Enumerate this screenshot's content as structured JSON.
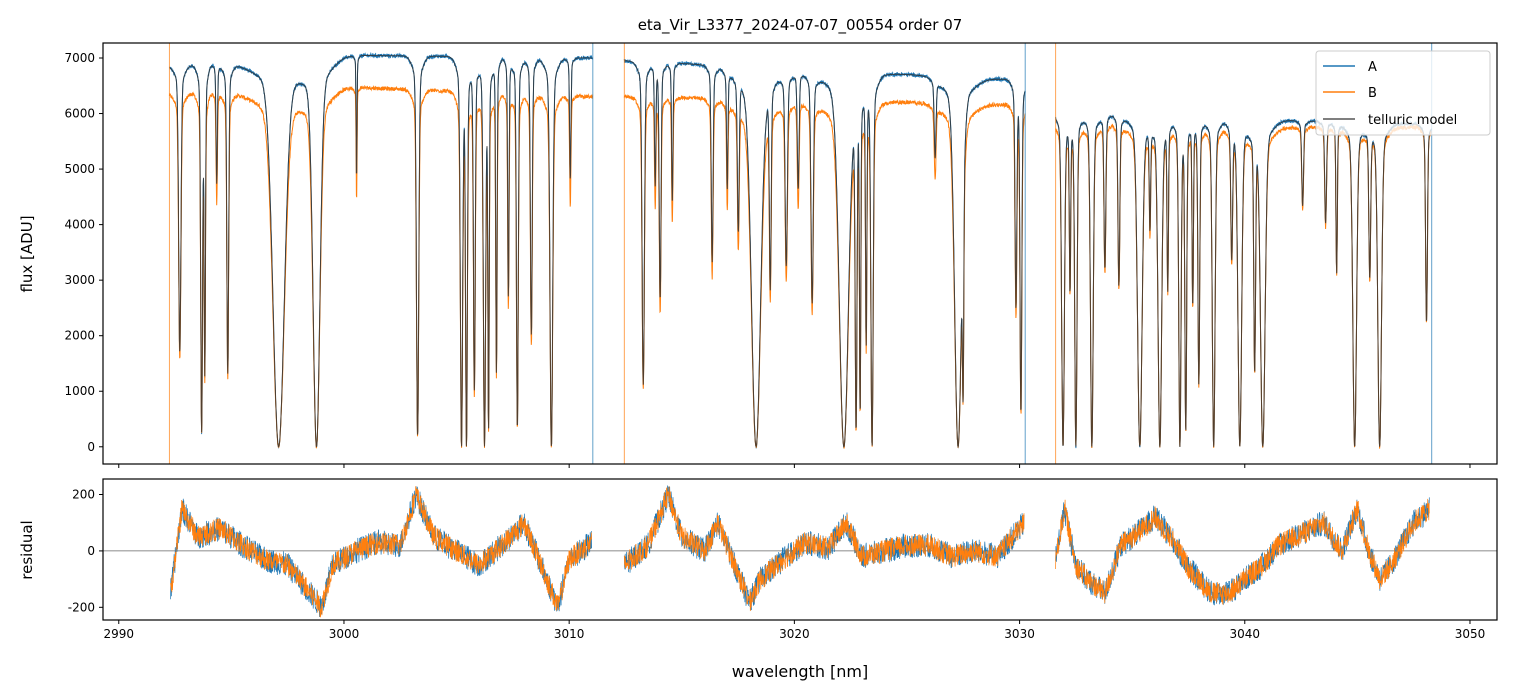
{
  "chart_data": [
    {
      "type": "line",
      "title": "eta_Vir_L3377_2024-07-07_00554  order 07",
      "xlabel": "",
      "ylabel": "flux [ADU]",
      "xlim": [
        2989.3,
        3051.2
      ],
      "ylim": [
        -310,
        7270
      ],
      "xticks": [
        2990,
        3000,
        3010,
        3020,
        3030,
        3040,
        3050
      ],
      "yticks": [
        0,
        1000,
        2000,
        3000,
        4000,
        5000,
        6000,
        7000
      ],
      "legend": {
        "position": "top-right",
        "entries": [
          "A",
          "B",
          "telluric model"
        ]
      },
      "series_colors": {
        "A": "#1f77b4",
        "B": "#ff7f0e",
        "telluric model": "#333333"
      },
      "segments": [
        {
          "range": [
            2992.25,
            3011.05
          ],
          "continuum_A": [
            [
              2992.25,
              6850
            ],
            [
              3000,
              7050
            ],
            [
              3011.05,
              7000
            ]
          ],
          "continuum_B": [
            [
              2992.25,
              6350
            ],
            [
              3000,
              6480
            ],
            [
              3011.05,
              6300
            ]
          ]
        },
        {
          "range": [
            3012.45,
            3030.25
          ],
          "continuum_A": [
            [
              3012.45,
              6950
            ],
            [
              3020,
              6800
            ],
            [
              3030.25,
              6600
            ]
          ],
          "continuum_B": [
            [
              3012.45,
              6300
            ],
            [
              3020,
              6250
            ],
            [
              3030.25,
              6150
            ]
          ]
        },
        {
          "range": [
            3031.6,
            3048.3
          ],
          "continuum_A": [
            [
              3031.6,
              6050
            ],
            [
              3040,
              5900
            ],
            [
              3048.3,
              5800
            ]
          ],
          "continuum_B": [
            [
              3031.6,
              5850
            ],
            [
              3040,
              5750
            ],
            [
              3048.3,
              5750
            ]
          ]
        }
      ],
      "absorption_lines": [
        [
          2992.71,
          0.74,
          0.05
        ],
        [
          2993.68,
          0.96,
          0.04
        ],
        [
          2993.82,
          0.8,
          0.03
        ],
        [
          2994.35,
          0.3,
          0.03
        ],
        [
          2994.84,
          0.8,
          0.04
        ],
        [
          2997.1,
          1.0,
          0.25
        ],
        [
          2998.78,
          1.0,
          0.15
        ],
        [
          3000.56,
          0.3,
          0.02
        ],
        [
          3003.27,
          0.97,
          0.05
        ],
        [
          3005.22,
          1.0,
          0.05
        ],
        [
          3005.44,
          1.0,
          0.04
        ],
        [
          3005.79,
          0.85,
          0.04
        ],
        [
          3006.24,
          1.0,
          0.05
        ],
        [
          3006.42,
          0.95,
          0.03
        ],
        [
          3006.77,
          0.8,
          0.03
        ],
        [
          3007.3,
          0.6,
          0.03
        ],
        [
          3007.7,
          0.95,
          0.04
        ],
        [
          3008.32,
          0.7,
          0.04
        ],
        [
          3009.21,
          1.0,
          0.06
        ],
        [
          3010.05,
          0.3,
          0.03
        ],
        [
          3013.29,
          0.83,
          0.05
        ],
        [
          3013.82,
          0.3,
          0.03
        ],
        [
          3014.04,
          0.6,
          0.04
        ],
        [
          3014.58,
          0.35,
          0.03
        ],
        [
          3016.35,
          0.5,
          0.04
        ],
        [
          3017.02,
          0.3,
          0.03
        ],
        [
          3017.51,
          0.4,
          0.04
        ],
        [
          3018.3,
          1.0,
          0.2
        ],
        [
          3018.93,
          0.55,
          0.04
        ],
        [
          3019.64,
          0.5,
          0.05
        ],
        [
          3020.17,
          0.3,
          0.04
        ],
        [
          3020.79,
          0.6,
          0.05
        ],
        [
          3022.2,
          1.0,
          0.2
        ],
        [
          3022.74,
          0.95,
          0.04
        ],
        [
          3022.92,
          0.9,
          0.03
        ],
        [
          3023.19,
          0.7,
          0.03
        ],
        [
          3023.45,
          1.0,
          0.05
        ],
        [
          3026.25,
          0.2,
          0.04
        ],
        [
          3027.27,
          1.0,
          0.15
        ],
        [
          3027.49,
          0.8,
          0.03
        ],
        [
          3029.84,
          0.6,
          0.04
        ],
        [
          3030.06,
          0.9,
          0.04
        ],
        [
          3031.93,
          1.0,
          0.06
        ],
        [
          3032.24,
          0.5,
          0.03
        ],
        [
          3032.5,
          1.0,
          0.05
        ],
        [
          3033.21,
          1.0,
          0.06
        ],
        [
          3033.79,
          0.45,
          0.04
        ],
        [
          3034.41,
          0.5,
          0.04
        ],
        [
          3035.34,
          1.0,
          0.1
        ],
        [
          3035.79,
          0.3,
          0.03
        ],
        [
          3036.23,
          1.0,
          0.08
        ],
        [
          3036.58,
          0.5,
          0.03
        ],
        [
          3037.12,
          1.0,
          0.05
        ],
        [
          3037.38,
          0.95,
          0.04
        ],
        [
          3037.69,
          0.55,
          0.03
        ],
        [
          3037.96,
          0.8,
          0.04
        ],
        [
          3038.62,
          1.0,
          0.06
        ],
        [
          3039.42,
          0.4,
          0.04
        ],
        [
          3039.78,
          1.0,
          0.08
        ],
        [
          3040.44,
          0.75,
          0.04
        ],
        [
          3040.8,
          1.0,
          0.1
        ],
        [
          3042.57,
          0.25,
          0.04
        ],
        [
          3043.59,
          0.3,
          0.04
        ],
        [
          3044.08,
          0.45,
          0.03
        ],
        [
          3044.88,
          1.0,
          0.08
        ],
        [
          3045.55,
          0.45,
          0.04
        ],
        [
          3045.99,
          1.0,
          0.08
        ],
        [
          3048.07,
          0.6,
          0.04
        ]
      ]
    },
    {
      "type": "line",
      "title": "",
      "xlabel": "wavelength [nm]",
      "ylabel": "residual",
      "xlim": [
        2989.3,
        3051.2
      ],
      "ylim": [
        -245,
        255
      ],
      "xticks": [
        2990,
        3000,
        3010,
        3020,
        3030,
        3040,
        3050
      ],
      "yticks": [
        -200,
        0,
        200
      ],
      "reference_line": 0,
      "residual_trend": [
        [
          [
            2992.3,
            -150
          ],
          [
            2992.8,
            150
          ],
          [
            2993.5,
            50
          ],
          [
            2994.5,
            80
          ],
          [
            2995.5,
            20
          ],
          [
            2996.5,
            -30
          ],
          [
            2997.5,
            -50
          ],
          [
            2998.5,
            -150
          ],
          [
            2999,
            -200
          ],
          [
            2999.5,
            -50
          ],
          [
            3000.5,
            0
          ],
          [
            3001.5,
            30
          ],
          [
            3002.5,
            20
          ],
          [
            3003.2,
            200
          ],
          [
            3004,
            50
          ],
          [
            3005,
            0
          ],
          [
            3006,
            -50
          ],
          [
            3007,
            20
          ],
          [
            3008,
            100
          ],
          [
            3008.5,
            0
          ],
          [
            3009.5,
            -200
          ],
          [
            3010,
            -30
          ],
          [
            3011,
            30
          ]
        ],
        [
          [
            3012.45,
            -50
          ],
          [
            3013.5,
            20
          ],
          [
            3014.4,
            200
          ],
          [
            3015,
            50
          ],
          [
            3016,
            0
          ],
          [
            3016.6,
            100
          ],
          [
            3017.5,
            -80
          ],
          [
            3018,
            -180
          ],
          [
            3018.5,
            -100
          ],
          [
            3019.5,
            -30
          ],
          [
            3020.5,
            30
          ],
          [
            3021.5,
            10
          ],
          [
            3022.3,
            100
          ],
          [
            3023,
            -20
          ],
          [
            3024,
            0
          ],
          [
            3025,
            20
          ],
          [
            3026,
            20
          ],
          [
            3027,
            -20
          ],
          [
            3028,
            0
          ],
          [
            3029,
            -20
          ],
          [
            3030.2,
            100
          ]
        ],
        [
          [
            3031.6,
            -30
          ],
          [
            3032,
            150
          ],
          [
            3032.5,
            -50
          ],
          [
            3033,
            -100
          ],
          [
            3033.8,
            -150
          ],
          [
            3034.5,
            20
          ],
          [
            3035.5,
            80
          ],
          [
            3036,
            120
          ],
          [
            3036.8,
            40
          ],
          [
            3037.5,
            -60
          ],
          [
            3038.5,
            -150
          ],
          [
            3039.3,
            -150
          ],
          [
            3040,
            -100
          ],
          [
            3040.8,
            -50
          ],
          [
            3041.5,
            20
          ],
          [
            3042.5,
            60
          ],
          [
            3043.5,
            100
          ],
          [
            3044.3,
            0
          ],
          [
            3045,
            150
          ],
          [
            3045.5,
            0
          ],
          [
            3046,
            -100
          ],
          [
            3046.5,
            -50
          ],
          [
            3047.5,
            100
          ],
          [
            3048.2,
            150
          ]
        ]
      ]
    }
  ]
}
